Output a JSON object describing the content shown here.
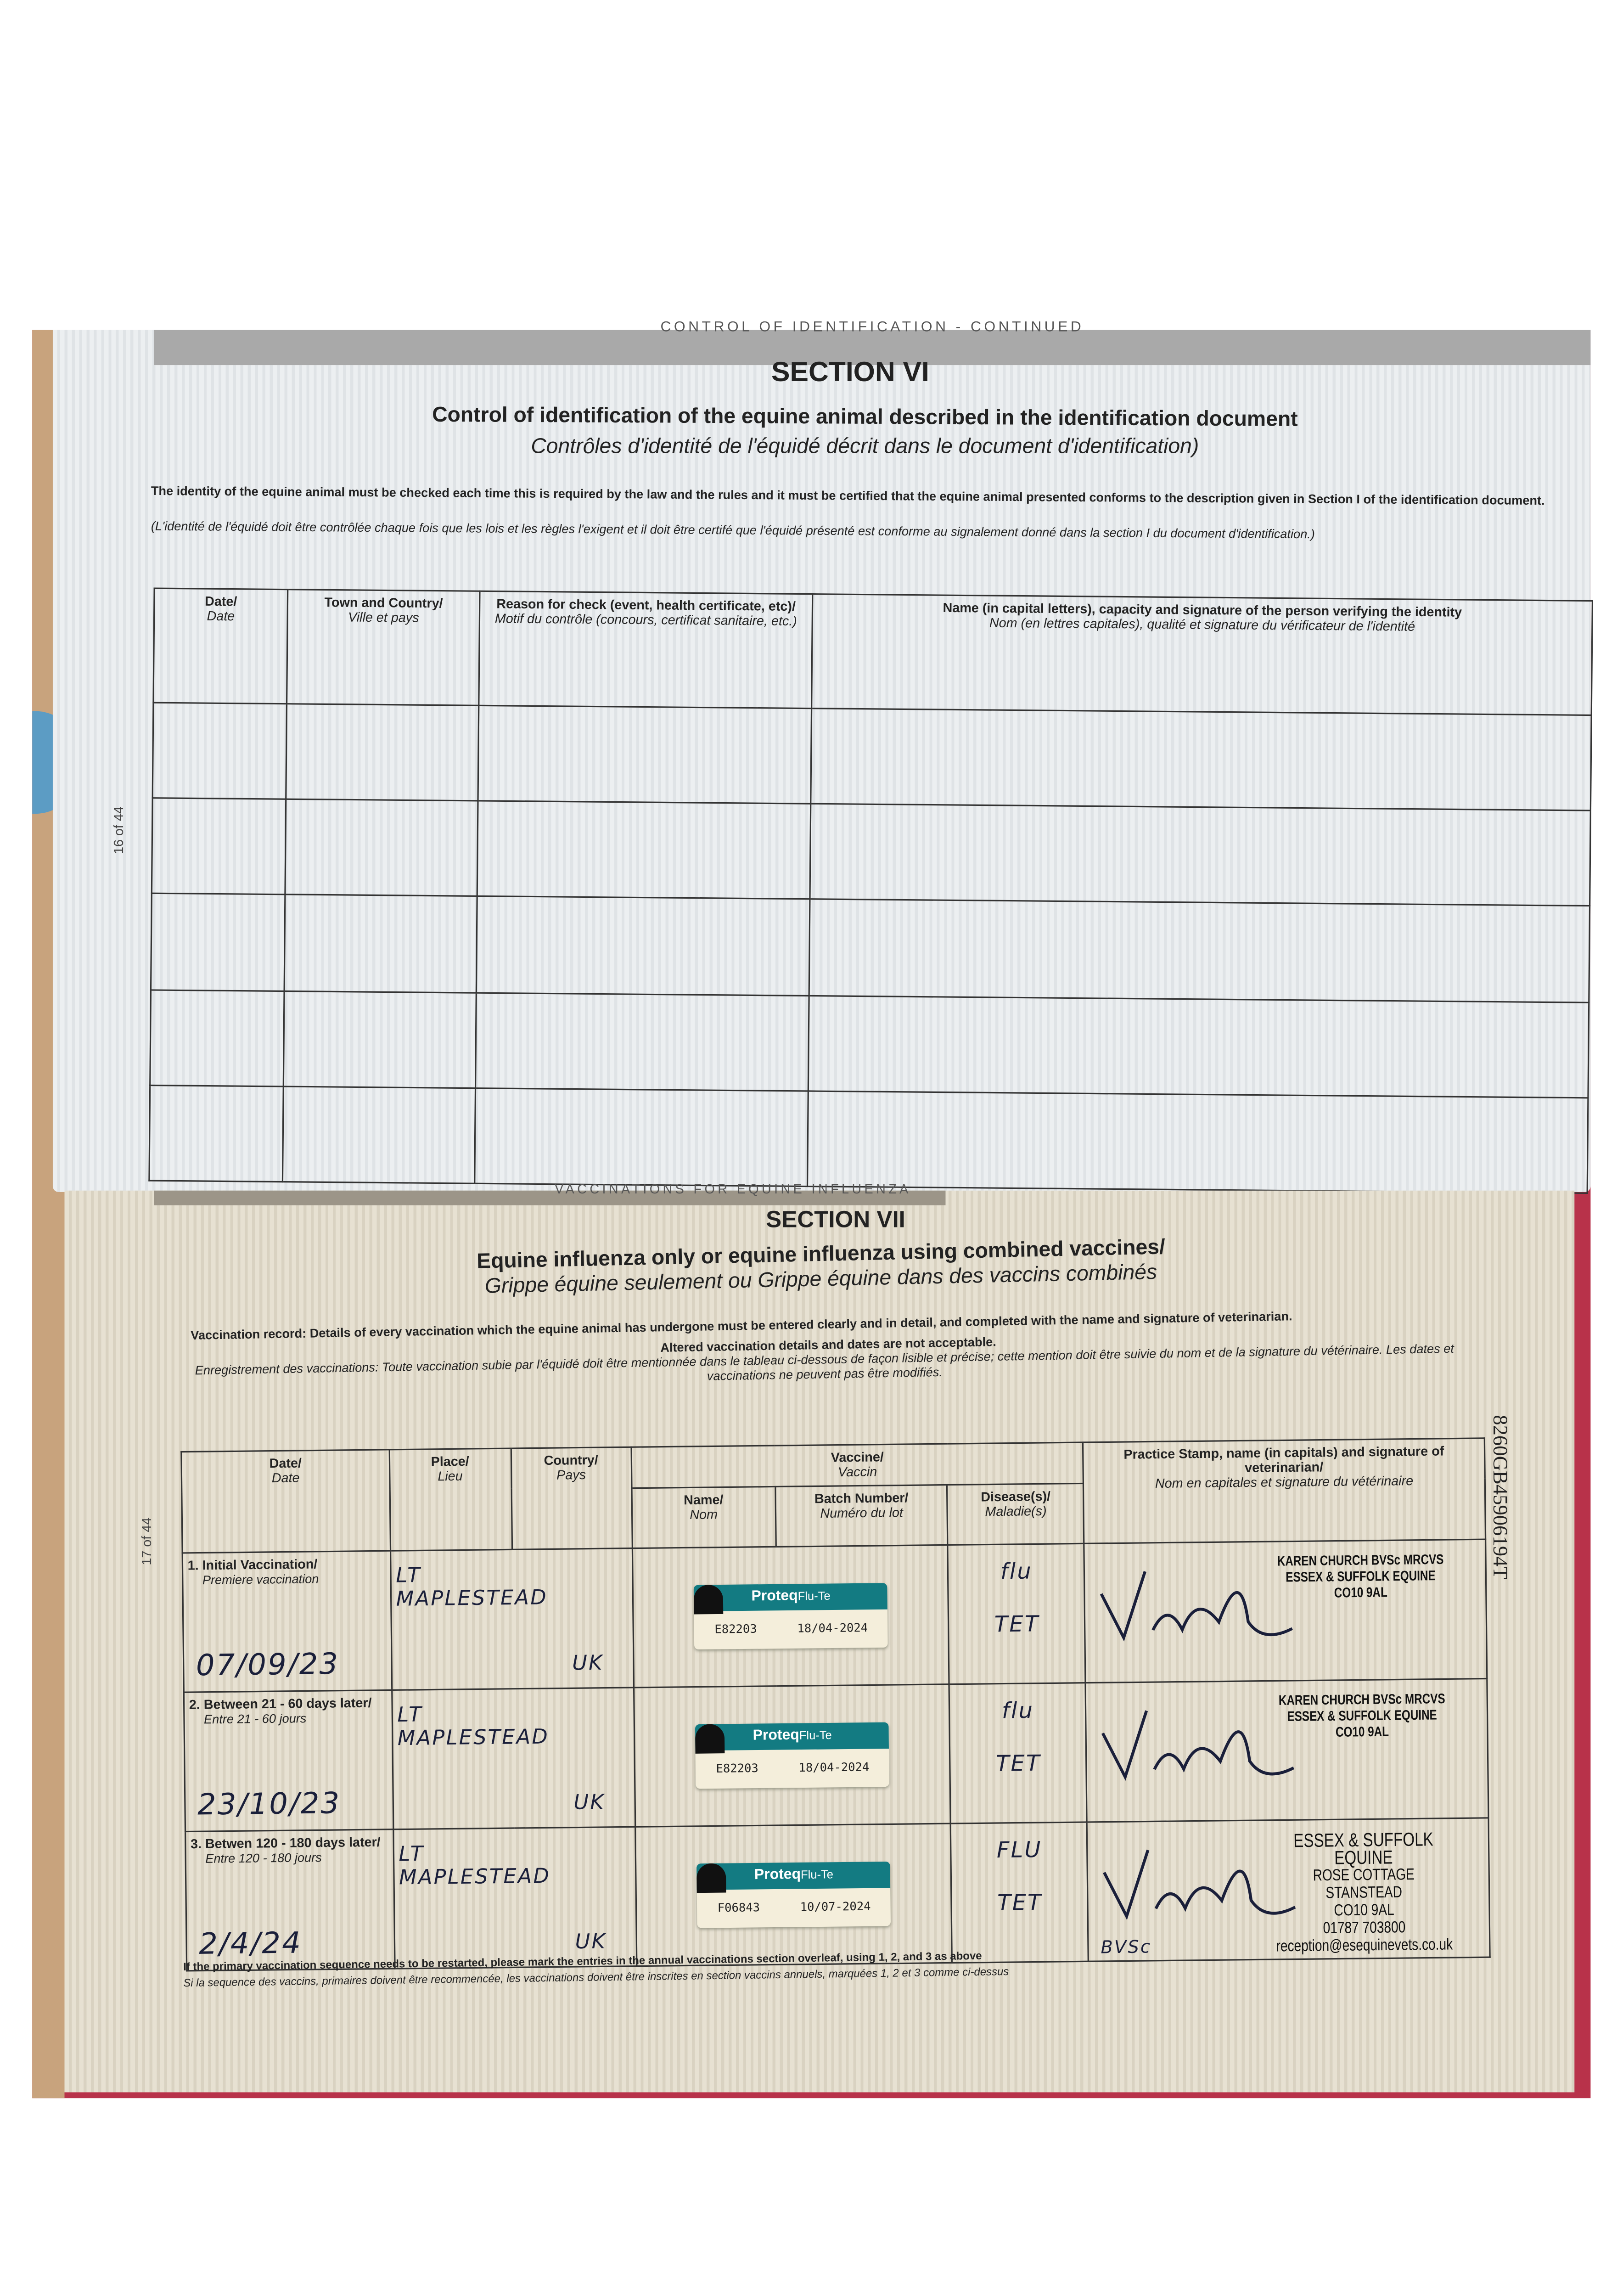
{
  "section6": {
    "header_strip": "CONTROL OF IDENTIFICATION - CONTINUED",
    "title": "SECTION VI",
    "heading_en": "Control of identification of the equine animal described in the identification document",
    "heading_fr": "Contrôles d'identité de l'équidé décrit dans le document d'identification)",
    "para_en": "The identity of the equine animal must be checked each time this is required by the law and the rules and it must be certified that the equine animal presented conforms to the description given in Section I of the identification document.",
    "para_fr": "(L'identité de l'équidé doit être contrôlée chaque fois que les lois et les règles l'exigent et il doit être certifé que l'équidé présenté est conforme au signalement donné dans la section I du document d'identification.)",
    "columns": [
      {
        "en": "Date/",
        "fr": "Date"
      },
      {
        "en": "Town and Country/",
        "fr": "Ville et pays"
      },
      {
        "en": "Reason for check (event, health certificate, etc)/",
        "fr": "Motif du contrôle (concours, certificat sanitaire, etc.)"
      },
      {
        "en": "Name (in capital letters), capacity and signature of the person verifying the identity",
        "fr": "Nom (en lettres capitales), qualité et signature du vérificateur de l'identité"
      }
    ],
    "page_number": "16 of 44"
  },
  "section7": {
    "header_strip": "VACCINATIONS FOR EQUINE INFLUENZA",
    "title": "SECTION VII",
    "heading_en": "Equine influenza only or equine influenza using combined vaccines/",
    "heading_fr": "Grippe équine seulement ou Grippe équine dans des vaccins combinés",
    "para_en_bold": "Vaccination record: Details of every vaccination which the equine animal has undergone must be entered clearly and in detail, and completed with the name and signature of veterinarian.",
    "para_en_2": "Altered vaccination details and dates are not acceptable.",
    "para_fr": "Enregistrement des vaccinations: Toute vaccination subie par l'équidé doit être mentionnée dans le tableau ci-dessous de façon lisible et précise; cette mention doit être suivie du nom et de la signature du vétérinaire. Les dates et vaccinations ne peuvent pas être modifiés.",
    "columns": {
      "date": {
        "en": "Date/",
        "fr": "Date"
      },
      "place": {
        "en": "Place/",
        "fr": "Lieu"
      },
      "country": {
        "en": "Country/",
        "fr": "Pays"
      },
      "vaccine": {
        "en": "Vaccine/",
        "fr": "Vaccin"
      },
      "name": {
        "en": "Name/",
        "fr": "Nom"
      },
      "batch": {
        "en": "Batch Number/",
        "fr": "Numéro du lot"
      },
      "disease": {
        "en": "Disease(s)/",
        "fr": "Maladie(s)"
      },
      "stamp": {
        "en": "Practice Stamp, name (in capitals) and signature of veterinarian/",
        "fr": "Nom en capitales et signature du vétérinaire"
      }
    },
    "rows": [
      {
        "stage_en": "1. Initial Vaccination/",
        "stage_fr": "Premiere vaccination",
        "date": "07/09/23",
        "place": "LT MAPLESTEAD",
        "country": "UK",
        "vaccine_brand": "Proteq",
        "vaccine_type": "Flu-Te",
        "batch": "E82203",
        "expiry": "18/04-2024",
        "disease_1": "flu",
        "disease_2": "TET",
        "stamp": [
          "KAREN CHURCH BVSc MRCVS",
          "ESSEX & SUFFOLK EQUINE",
          "CO10 9AL"
        ]
      },
      {
        "stage_en": "2. Between 21 - 60 days later/",
        "stage_fr": "Entre 21 - 60 jours",
        "date": "23/10/23",
        "place": "LT MAPLESTEAD",
        "country": "UK",
        "vaccine_brand": "Proteq",
        "vaccine_type": "Flu-Te",
        "batch": "E82203",
        "expiry": "18/04-2024",
        "disease_1": "flu",
        "disease_2": "TET",
        "stamp": [
          "KAREN CHURCH BVSc MRCVS",
          "ESSEX & SUFFOLK EQUINE",
          "CO10 9AL"
        ]
      },
      {
        "stage_en": "3. Betwen 120 - 180 days later/",
        "stage_fr": "Entre 120 - 180 jours",
        "date": "2/4/24",
        "place": "LT MAPLESTEAD",
        "country": "UK",
        "vaccine_brand": "Proteq",
        "vaccine_type": "Flu-Te",
        "batch": "F06843",
        "expiry": "10/07-2024",
        "disease_1": "FLU",
        "disease_2": "TET",
        "signature_suffix": "BVSc",
        "stamp": [
          "ESSEX & SUFFOLK EQUINE",
          "ROSE COTTAGE",
          "STANSTEAD",
          "CO10 9AL",
          "01787 703800",
          "reception@esequinevets.co.uk"
        ]
      }
    ],
    "footer_en": "If the primary vaccination sequence needs to be restarted, please mark the entries in the annual vaccinations section overleaf, using 1, 2, and 3 as above",
    "footer_fr": "Si la sequence des vaccins, primaires doivent être recommencée, les vaccinations doivent être inscrites en section vaccins annuels, marquées 1, 2 et 3 comme ci-dessus",
    "page_number": "17 of 44",
    "passport_number": "8260GB45906194T"
  },
  "colors": {
    "cover": "#b8324a",
    "label_teal": "#137b82"
  }
}
